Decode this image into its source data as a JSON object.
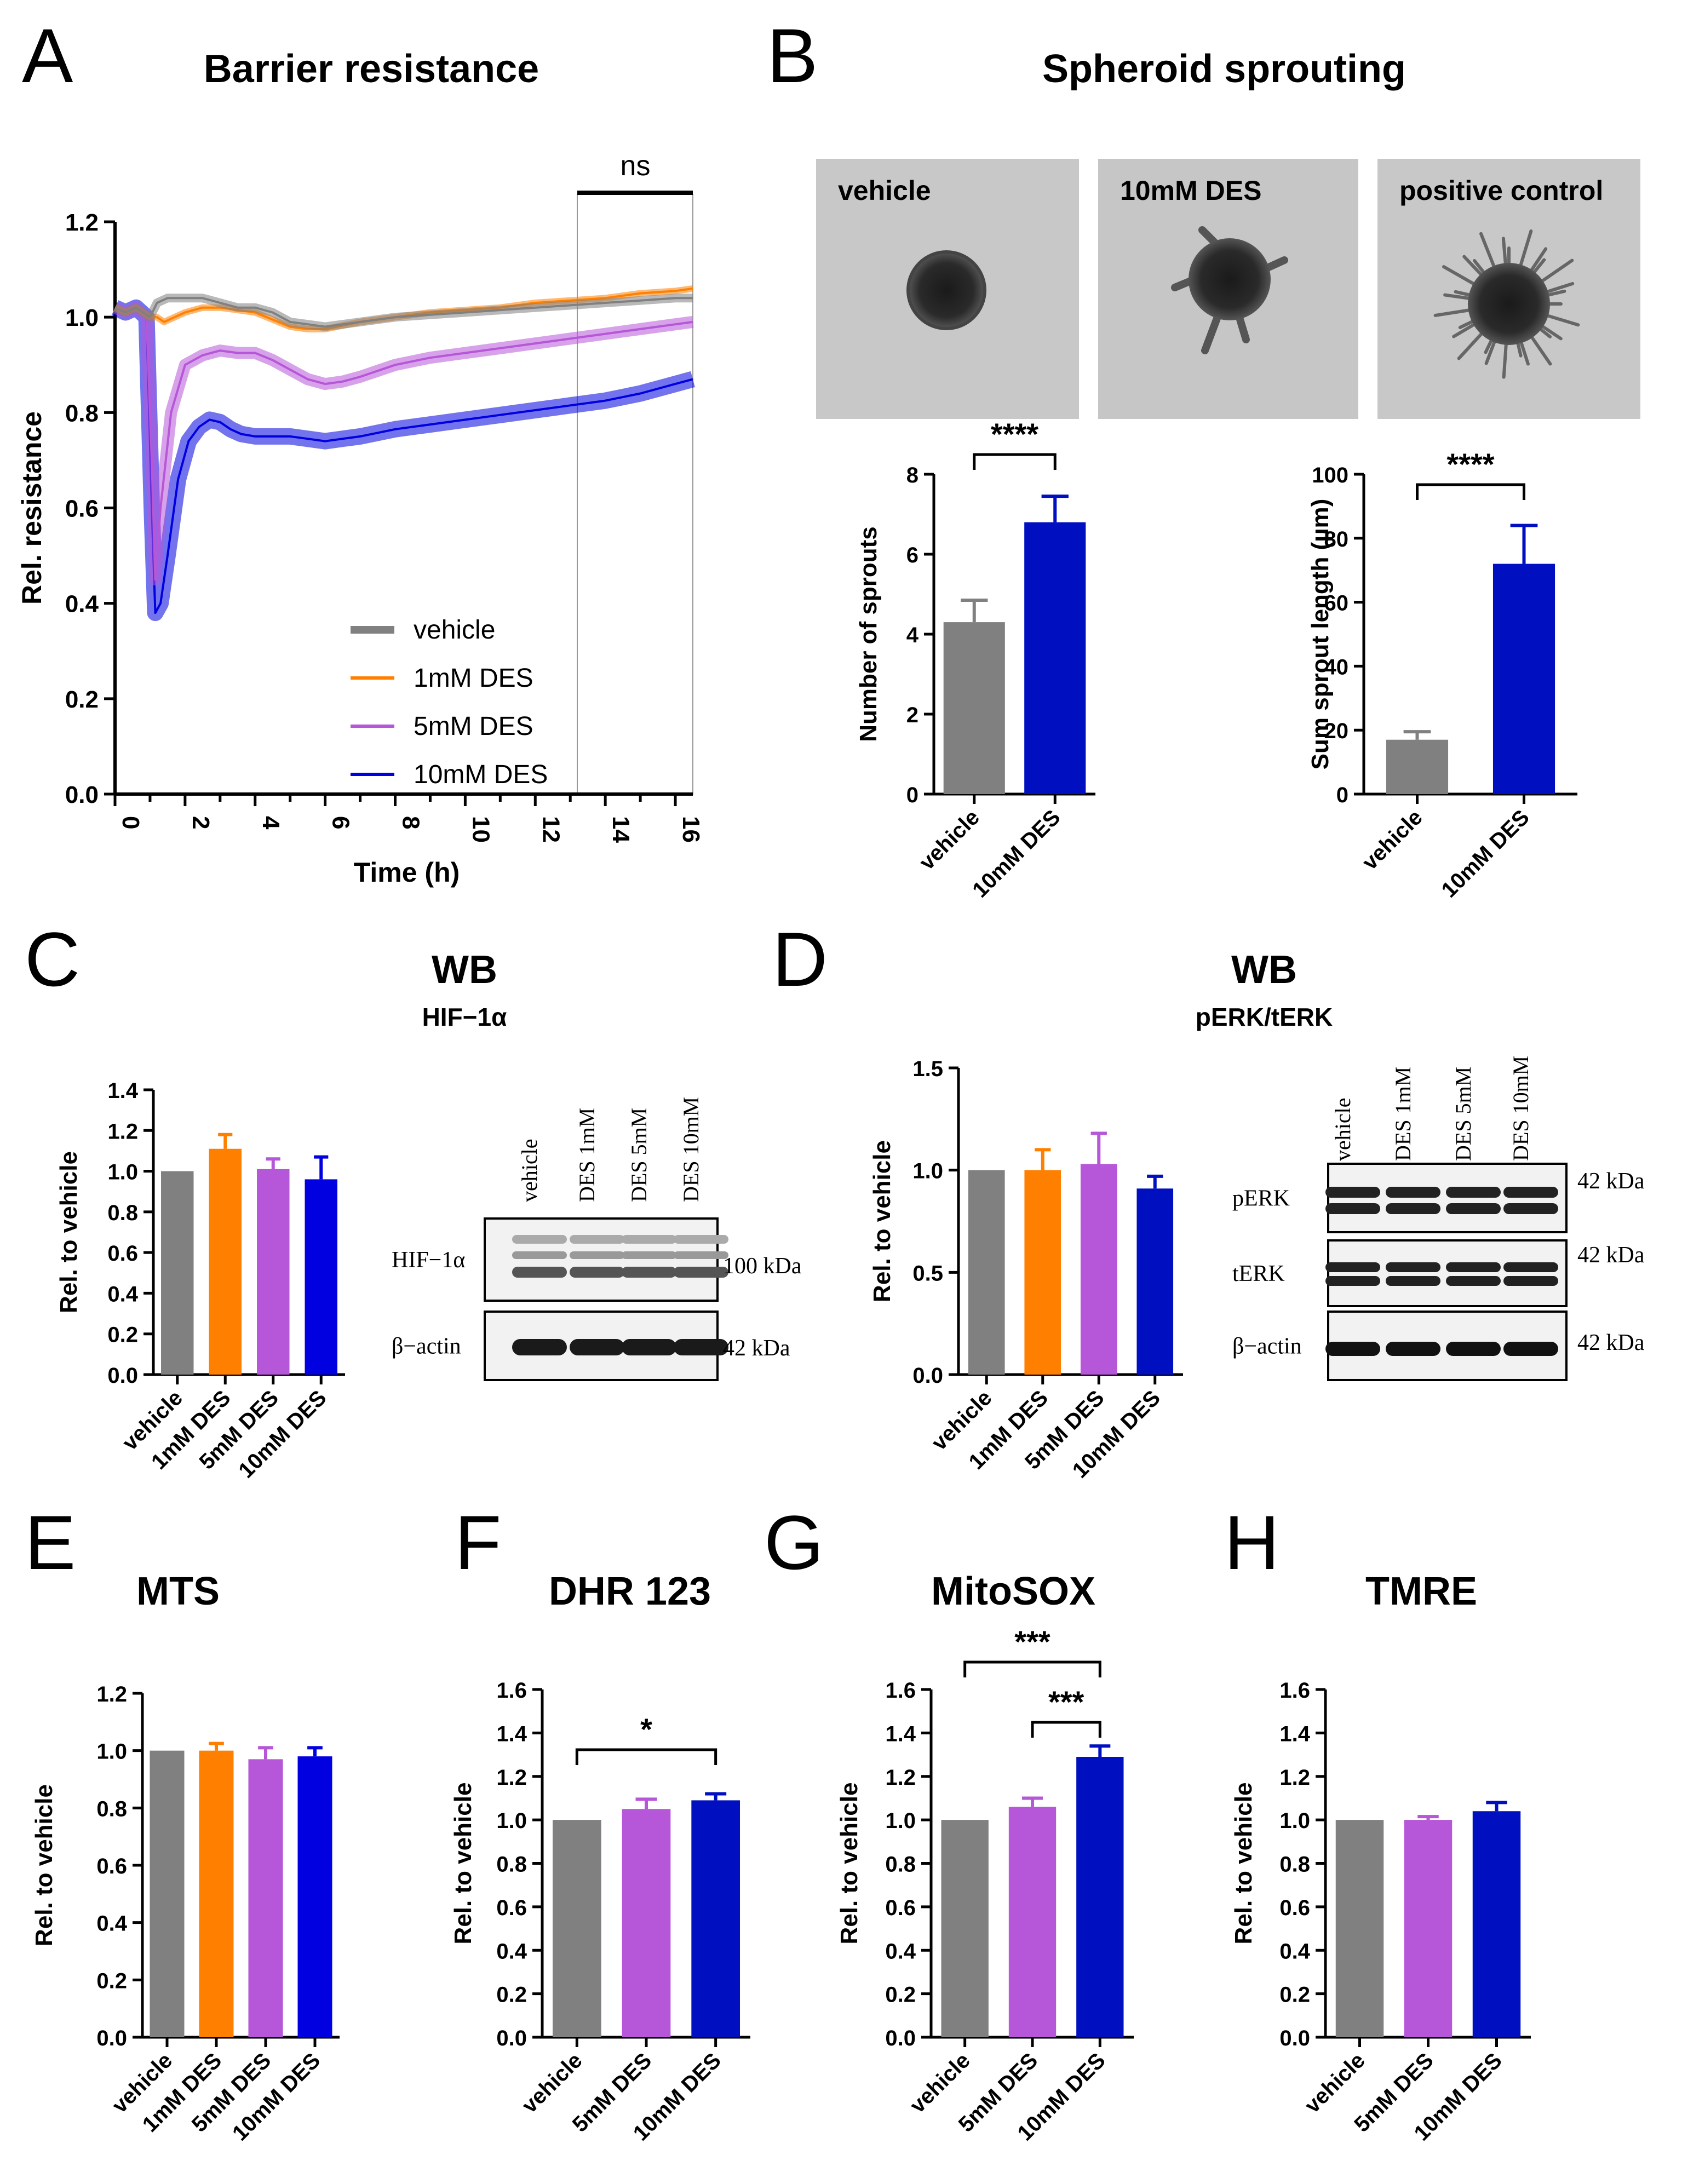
{
  "figure": {
    "colors": {
      "vehicle": "#808080",
      "des1": "#ff8000",
      "des5": "#b656d8",
      "des10": "#0000e0",
      "des10dark": "#0010c0",
      "axis": "#000000"
    },
    "panelA": {
      "letter": "A",
      "title": "Barrier resistance",
      "ns": "ns"
    },
    "panelB": {
      "letter": "B",
      "title": "Spheroid sprouting",
      "images": [
        "vehicle",
        "10mM DES",
        "positive control"
      ],
      "sig": "****"
    },
    "panelC": {
      "letter": "C",
      "title": "WB",
      "subtitle": "HIF−1α",
      "blot_lanes": [
        "vehicle",
        "DES 1mM",
        "DES 5mM",
        "DES 10mM"
      ],
      "blot_rows": [
        {
          "label": "HIF−1α",
          "kda": "100 kDa"
        },
        {
          "label": "β−actin",
          "kda": "42 kDa"
        }
      ]
    },
    "panelD": {
      "letter": "D",
      "title": "WB",
      "subtitle": "pERK/tERK",
      "blot_lanes": [
        "vehicle",
        "DES 1mM",
        "DES 5mM",
        "DES 10mM"
      ],
      "blot_rows": [
        {
          "label": "pERK",
          "kda": "42 kDa"
        },
        {
          "label": "tERK",
          "kda": "42 kDa"
        },
        {
          "label": "β−actin",
          "kda": "42 kDa"
        }
      ]
    },
    "panelE": {
      "letter": "E",
      "title": "MTS"
    },
    "panelF": {
      "letter": "F",
      "title": "DHR 123",
      "sig": "*"
    },
    "panelG": {
      "letter": "G",
      "title": "MitoSOX",
      "sig": [
        "***",
        "***"
      ]
    },
    "panelH": {
      "letter": "H",
      "title": "TMRE"
    }
  },
  "chart_data": [
    {
      "id": "A",
      "type": "line",
      "title": "Barrier resistance",
      "xlabel": "Time (h)",
      "ylabel": "Rel. resistance",
      "xlim": [
        0,
        16.5
      ],
      "ylim": [
        0,
        1.2
      ],
      "xticks": [
        "0",
        "2",
        "4",
        "6",
        "8",
        "10",
        "12",
        "14",
        "16"
      ],
      "yticks": [
        "0.0",
        "0.2",
        "0.4",
        "0.6",
        "0.8",
        "1.0",
        "1.2"
      ],
      "annotation": "ns (13.2–16.5 h)",
      "series": [
        {
          "name": "vehicle",
          "x": [
            0,
            0.3,
            0.6,
            1.0,
            1.2,
            1.5,
            2.0,
            2.5,
            3.0,
            3.5,
            4.0,
            4.5,
            5.0,
            5.5,
            6.0,
            7.0,
            8.0,
            9.0,
            10.0,
            11.0,
            12.0,
            13.0,
            14.0,
            15.0,
            16.0,
            16.5
          ],
          "y": [
            1.02,
            1.01,
            1.02,
            1.0,
            1.03,
            1.04,
            1.04,
            1.04,
            1.03,
            1.02,
            1.02,
            1.01,
            0.99,
            0.985,
            0.98,
            0.99,
            1.0,
            1.005,
            1.01,
            1.015,
            1.02,
            1.025,
            1.03,
            1.035,
            1.04,
            1.04
          ]
        },
        {
          "name": "1mM DES",
          "x": [
            0,
            0.3,
            0.6,
            1.0,
            1.2,
            1.4,
            1.7,
            2.0,
            2.5,
            3.0,
            3.5,
            4.0,
            4.5,
            5.0,
            5.5,
            6.0,
            7.0,
            8.0,
            9.0,
            10.0,
            11.0,
            12.0,
            13.0,
            14.0,
            15.0,
            16.0,
            16.5
          ],
          "y": [
            1.02,
            1.01,
            1.02,
            1.0,
            1.0,
            0.99,
            1.0,
            1.01,
            1.02,
            1.02,
            1.015,
            1.01,
            0.995,
            0.98,
            0.975,
            0.975,
            0.99,
            1.0,
            1.01,
            1.015,
            1.02,
            1.03,
            1.035,
            1.04,
            1.05,
            1.055,
            1.06
          ]
        },
        {
          "name": "5mM DES",
          "x": [
            0,
            0.3,
            0.6,
            0.9,
            1.05,
            1.15,
            1.3,
            1.6,
            2.0,
            2.5,
            3.0,
            3.5,
            4.0,
            4.5,
            5.0,
            5.5,
            6.0,
            6.5,
            7.0,
            8.0,
            9.0,
            10.0,
            11.0,
            12.0,
            13.0,
            14.0,
            15.0,
            16.0,
            16.5
          ],
          "y": [
            1.02,
            1.01,
            1.02,
            1.0,
            0.7,
            0.45,
            0.6,
            0.8,
            0.9,
            0.92,
            0.93,
            0.925,
            0.925,
            0.91,
            0.89,
            0.87,
            0.86,
            0.865,
            0.875,
            0.9,
            0.915,
            0.925,
            0.935,
            0.945,
            0.955,
            0.965,
            0.975,
            0.985,
            0.99
          ]
        },
        {
          "name": "10mM DES",
          "x": [
            0,
            0.3,
            0.6,
            0.9,
            1.05,
            1.15,
            1.3,
            1.5,
            1.8,
            2.1,
            2.4,
            2.7,
            3.0,
            3.3,
            3.6,
            4.0,
            4.5,
            5.0,
            5.5,
            6.0,
            6.5,
            7.0,
            8.0,
            9.0,
            10.0,
            11.0,
            12.0,
            13.0,
            14.0,
            15.0,
            16.0,
            16.5
          ],
          "y": [
            1.02,
            1.01,
            1.02,
            1.0,
            0.6,
            0.38,
            0.4,
            0.5,
            0.66,
            0.74,
            0.77,
            0.785,
            0.78,
            0.765,
            0.755,
            0.75,
            0.75,
            0.75,
            0.745,
            0.74,
            0.745,
            0.75,
            0.765,
            0.775,
            0.785,
            0.795,
            0.805,
            0.815,
            0.825,
            0.84,
            0.86,
            0.87
          ]
        }
      ],
      "legend": [
        "vehicle",
        "1mM DES",
        "5mM DES",
        "10mM DES"
      ],
      "legend_position": "bottom-right"
    },
    {
      "id": "B1",
      "type": "bar",
      "categories": [
        "vehicle",
        "10mM DES"
      ],
      "values": [
        4.3,
        6.8
      ],
      "errors": [
        0.55,
        0.65
      ],
      "ylabel": "Number of sprouts",
      "ylim": [
        0,
        8
      ],
      "yticks": [
        "0",
        "2",
        "4",
        "6",
        "8"
      ],
      "significance": [
        {
          "pair": [
            0,
            1
          ],
          "label": "****"
        }
      ]
    },
    {
      "id": "B2",
      "type": "bar",
      "categories": [
        "vehicle",
        "10mM DES"
      ],
      "values": [
        17,
        72
      ],
      "errors": [
        2.5,
        12
      ],
      "ylabel": "Sum sprout length (µm)",
      "ylim": [
        0,
        100
      ],
      "yticks": [
        "0",
        "20",
        "40",
        "60",
        "80",
        "100"
      ],
      "significance": [
        {
          "pair": [
            0,
            1
          ],
          "label": "****"
        }
      ]
    },
    {
      "id": "C",
      "type": "bar",
      "categories": [
        "vehicle",
        "1mM DES",
        "5mM DES",
        "10mM DES"
      ],
      "values": [
        1.0,
        1.11,
        1.01,
        0.96
      ],
      "errors": [
        0,
        0.07,
        0.05,
        0.11
      ],
      "ylabel": "Rel. to vehicle",
      "ylim": [
        0,
        1.4
      ],
      "yticks": [
        "0.0",
        "0.2",
        "0.4",
        "0.6",
        "0.8",
        "1.0",
        "1.2",
        "1.4"
      ]
    },
    {
      "id": "D",
      "type": "bar",
      "categories": [
        "vehicle",
        "1mM DES",
        "5mM DES",
        "10mM DES"
      ],
      "values": [
        1.0,
        1.0,
        1.03,
        0.91
      ],
      "errors": [
        0,
        0.1,
        0.15,
        0.06
      ],
      "ylabel": "Rel. to vehicle",
      "ylim": [
        0,
        1.5
      ],
      "yticks": [
        "0.0",
        "0.5",
        "1.0",
        "1.5"
      ]
    },
    {
      "id": "E",
      "type": "bar",
      "title": "MTS",
      "categories": [
        "vehicle",
        "1mM DES",
        "5mM DES",
        "10mM DES"
      ],
      "values": [
        1.0,
        1.0,
        0.97,
        0.98
      ],
      "errors": [
        0,
        0.025,
        0.04,
        0.03
      ],
      "ylabel": "Rel. to vehicle",
      "ylim": [
        0,
        1.2
      ],
      "yticks": [
        "0.0",
        "0.2",
        "0.4",
        "0.6",
        "0.8",
        "1.0",
        "1.2"
      ]
    },
    {
      "id": "F",
      "type": "bar",
      "title": "DHR 123",
      "categories": [
        "vehicle",
        "5mM DES",
        "10mM DES"
      ],
      "values": [
        1.0,
        1.05,
        1.09
      ],
      "errors": [
        0,
        0.045,
        0.03
      ],
      "ylabel": "Rel. to vehicle",
      "ylim": [
        0,
        1.6
      ],
      "yticks": [
        "0.0",
        "0.2",
        "0.4",
        "0.6",
        "0.8",
        "1.0",
        "1.2",
        "1.4",
        "1.6"
      ],
      "significance": [
        {
          "pair": [
            0,
            2
          ],
          "label": "*"
        }
      ]
    },
    {
      "id": "G",
      "type": "bar",
      "title": "MitoSOX",
      "categories": [
        "vehicle",
        "5mM DES",
        "10mM DES"
      ],
      "values": [
        1.0,
        1.06,
        1.29
      ],
      "errors": [
        0,
        0.04,
        0.05
      ],
      "ylabel": "Rel. to vehicle",
      "ylim": [
        0,
        1.6
      ],
      "yticks": [
        "0.0",
        "0.2",
        "0.4",
        "0.6",
        "0.8",
        "1.0",
        "1.2",
        "1.4",
        "1.6"
      ],
      "significance": [
        {
          "pair": [
            0,
            2
          ],
          "label": "***"
        },
        {
          "pair": [
            1,
            2
          ],
          "label": "***"
        }
      ]
    },
    {
      "id": "H",
      "type": "bar",
      "title": "TMRE",
      "categories": [
        "vehicle",
        "5mM DES",
        "10mM DES"
      ],
      "values": [
        1.0,
        1.0,
        1.04
      ],
      "errors": [
        0,
        0.015,
        0.04
      ],
      "ylabel": "Rel. to vehicle",
      "ylim": [
        0,
        1.6
      ],
      "yticks": [
        "0.0",
        "0.2",
        "0.4",
        "0.6",
        "0.8",
        "1.0",
        "1.2",
        "1.4",
        "1.6"
      ]
    }
  ]
}
